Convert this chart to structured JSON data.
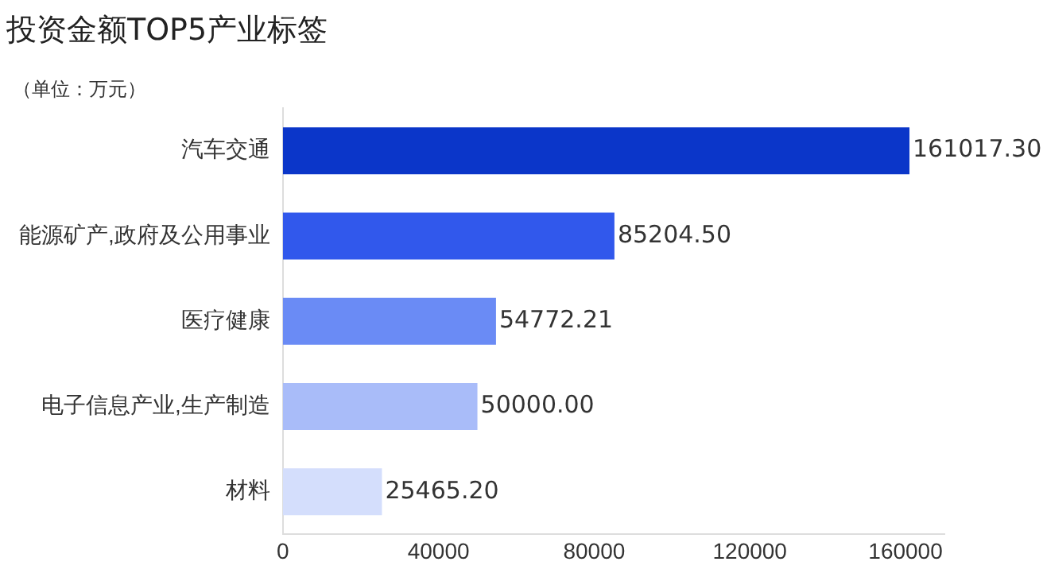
{
  "chart_data": {
    "type": "bar",
    "orientation": "horizontal",
    "title": "投资金额TOP5产业标签",
    "annotations": [
      "（单位：万元）"
    ],
    "categories": [
      "汽车交通",
      "能源矿产,政府及公用事业",
      "医疗健康",
      "电子信息产业,生产制造",
      "材料"
    ],
    "values": [
      161017.3,
      85204.5,
      54772.21,
      50000.0,
      25465.2
    ],
    "colors": [
      "#0b36c9",
      "#3158ec",
      "#6a8bf5",
      "#a9bcf9",
      "#d4defc"
    ],
    "value_labels": [
      "161017.30",
      "85204.50",
      "54772.21",
      "50000.00",
      "25465.20"
    ],
    "xlim": [
      0,
      170000
    ],
    "xticks": [
      0,
      40000,
      80000,
      120000,
      160000
    ],
    "grid": false,
    "legend": false
  }
}
